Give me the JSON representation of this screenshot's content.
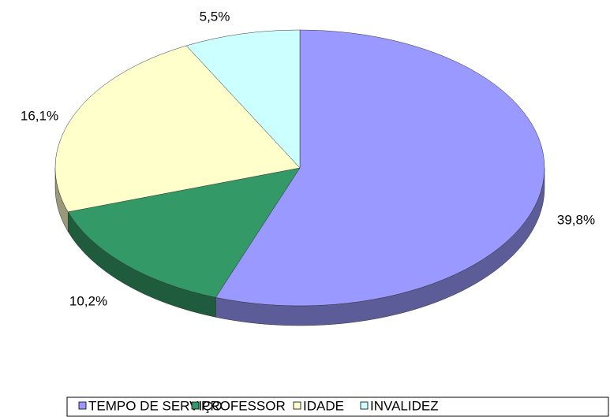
{
  "chart_data": {
    "type": "pie",
    "categories": [
      "TEMPO DE SERVIÇO",
      "PROFESSOR",
      "IDADE",
      "INVALIDEZ"
    ],
    "values": [
      39.8,
      10.2,
      16.1,
      5.5
    ],
    "value_labels": [
      "39,8%",
      "10,2%",
      "16,1%",
      "5,5%"
    ],
    "colors": [
      "#9999ff",
      "#339966",
      "#ffffcc",
      "#ccffff"
    ],
    "legend": "bottom"
  }
}
